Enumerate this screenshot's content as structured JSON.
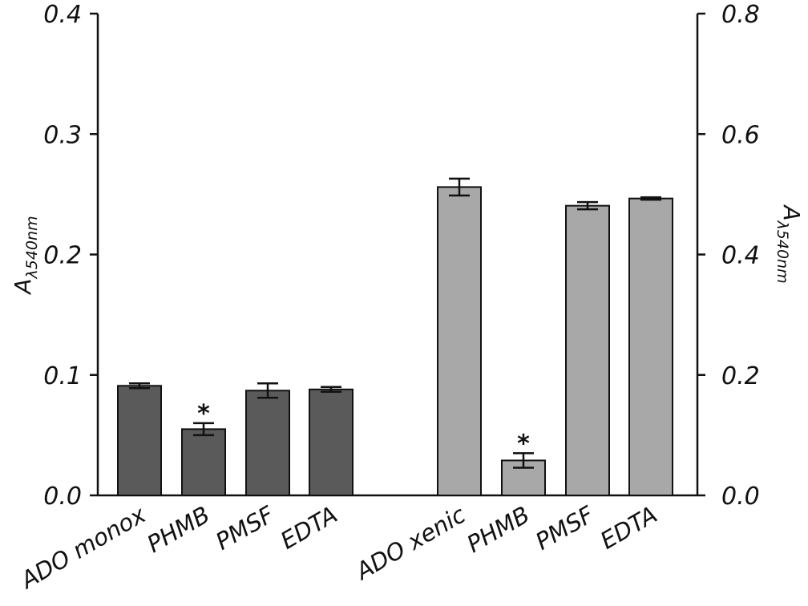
{
  "chart_data": {
    "type": "bar",
    "title": "",
    "left_axis": {
      "label_main": "A",
      "label_sub": "λ540nm",
      "ylim": [
        0,
        0.4
      ],
      "ticks": [
        0.0,
        0.1,
        0.2,
        0.3,
        0.4
      ],
      "tick_labels": [
        "0.0",
        "0.1",
        "0.2",
        "0.3",
        "0.4"
      ]
    },
    "right_axis": {
      "label_main": "A",
      "label_sub": "λ540nm",
      "ylim": [
        0,
        0.8
      ],
      "ticks": [
        0.0,
        0.2,
        0.4,
        0.6,
        0.8
      ],
      "tick_labels": [
        "0.0",
        "0.2",
        "0.4",
        "0.6",
        "0.8"
      ]
    },
    "groups": [
      {
        "axis": "left",
        "color": "#5a5a5a",
        "categories": [
          "ADO monox",
          "PHMB",
          "PMSF",
          "EDTA"
        ],
        "values": [
          0.091,
          0.055,
          0.087,
          0.088
        ],
        "errors": [
          0.002,
          0.005,
          0.006,
          0.002
        ],
        "significant": [
          false,
          true,
          false,
          false
        ]
      },
      {
        "axis": "right",
        "color": "#a8a8a8",
        "categories": [
          "ADO xenic",
          "PHMB",
          "PMSF",
          "EDTA"
        ],
        "values": [
          0.512,
          0.058,
          0.481,
          0.493
        ],
        "errors": [
          0.014,
          0.012,
          0.006,
          0.002
        ],
        "significant": [
          false,
          true,
          false,
          false
        ]
      }
    ],
    "significance_marker": "*",
    "grid": false,
    "legend": "none"
  }
}
